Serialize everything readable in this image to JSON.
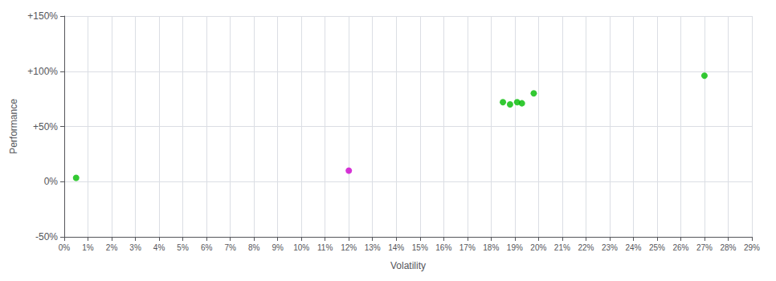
{
  "chart_data": {
    "type": "scatter",
    "xlabel": "Volatility",
    "ylabel": "Performance",
    "x": [
      0.005,
      0.12,
      0.185,
      0.188,
      0.191,
      0.193,
      0.198,
      0.27
    ],
    "values": [
      0.035,
      0.1,
      0.72,
      0.7,
      0.72,
      0.71,
      0.8,
      0.96
    ],
    "colors": [
      "#00bb00",
      "#cc00cc",
      "#00bb00",
      "#00bb00",
      "#00bb00",
      "#00bb00",
      "#00bb00",
      "#00bb00"
    ],
    "xlim": [
      0,
      0.29
    ],
    "xticks": [
      {
        "value": 0,
        "label": "0%"
      },
      {
        "value": 0.01,
        "label": "1%"
      },
      {
        "value": 0.02,
        "label": "2%"
      },
      {
        "value": 0.03,
        "label": "3%"
      },
      {
        "value": 0.04,
        "label": "4%"
      },
      {
        "value": 0.05,
        "label": "5%"
      },
      {
        "value": 0.06,
        "label": "6%"
      },
      {
        "value": 0.07,
        "label": "7%"
      },
      {
        "value": 0.08,
        "label": "8%"
      },
      {
        "value": 0.09,
        "label": "9%"
      },
      {
        "value": 0.1,
        "label": "10%"
      },
      {
        "value": 0.11,
        "label": "11%"
      },
      {
        "value": 0.12,
        "label": "12%"
      },
      {
        "value": 0.13,
        "label": "13%"
      },
      {
        "value": 0.14,
        "label": "14%"
      },
      {
        "value": 0.15,
        "label": "15%"
      },
      {
        "value": 0.16,
        "label": "16%"
      },
      {
        "value": 0.17,
        "label": "17%"
      },
      {
        "value": 0.18,
        "label": "18%"
      },
      {
        "value": 0.19,
        "label": "19%"
      },
      {
        "value": 0.2,
        "label": "20%"
      },
      {
        "value": 0.21,
        "label": "21%"
      },
      {
        "value": 0.22,
        "label": "22%"
      },
      {
        "value": 0.23,
        "label": "23%"
      },
      {
        "value": 0.24,
        "label": "24%"
      },
      {
        "value": 0.25,
        "label": "25%"
      },
      {
        "value": 0.26,
        "label": "26%"
      },
      {
        "value": 0.27,
        "label": "27%"
      },
      {
        "value": 0.28,
        "label": "28%"
      },
      {
        "value": 0.29,
        "label": "29%"
      }
    ],
    "ylim": [
      -0.5,
      1.5
    ],
    "yticks": [
      {
        "value": -0.5,
        "label": "-50%"
      },
      {
        "value": 0.0,
        "label": "0%"
      },
      {
        "value": 0.5,
        "label": "+50%"
      },
      {
        "value": 1.0,
        "label": "+100%"
      },
      {
        "value": 1.5,
        "label": "+150%"
      }
    ],
    "grid": true
  }
}
